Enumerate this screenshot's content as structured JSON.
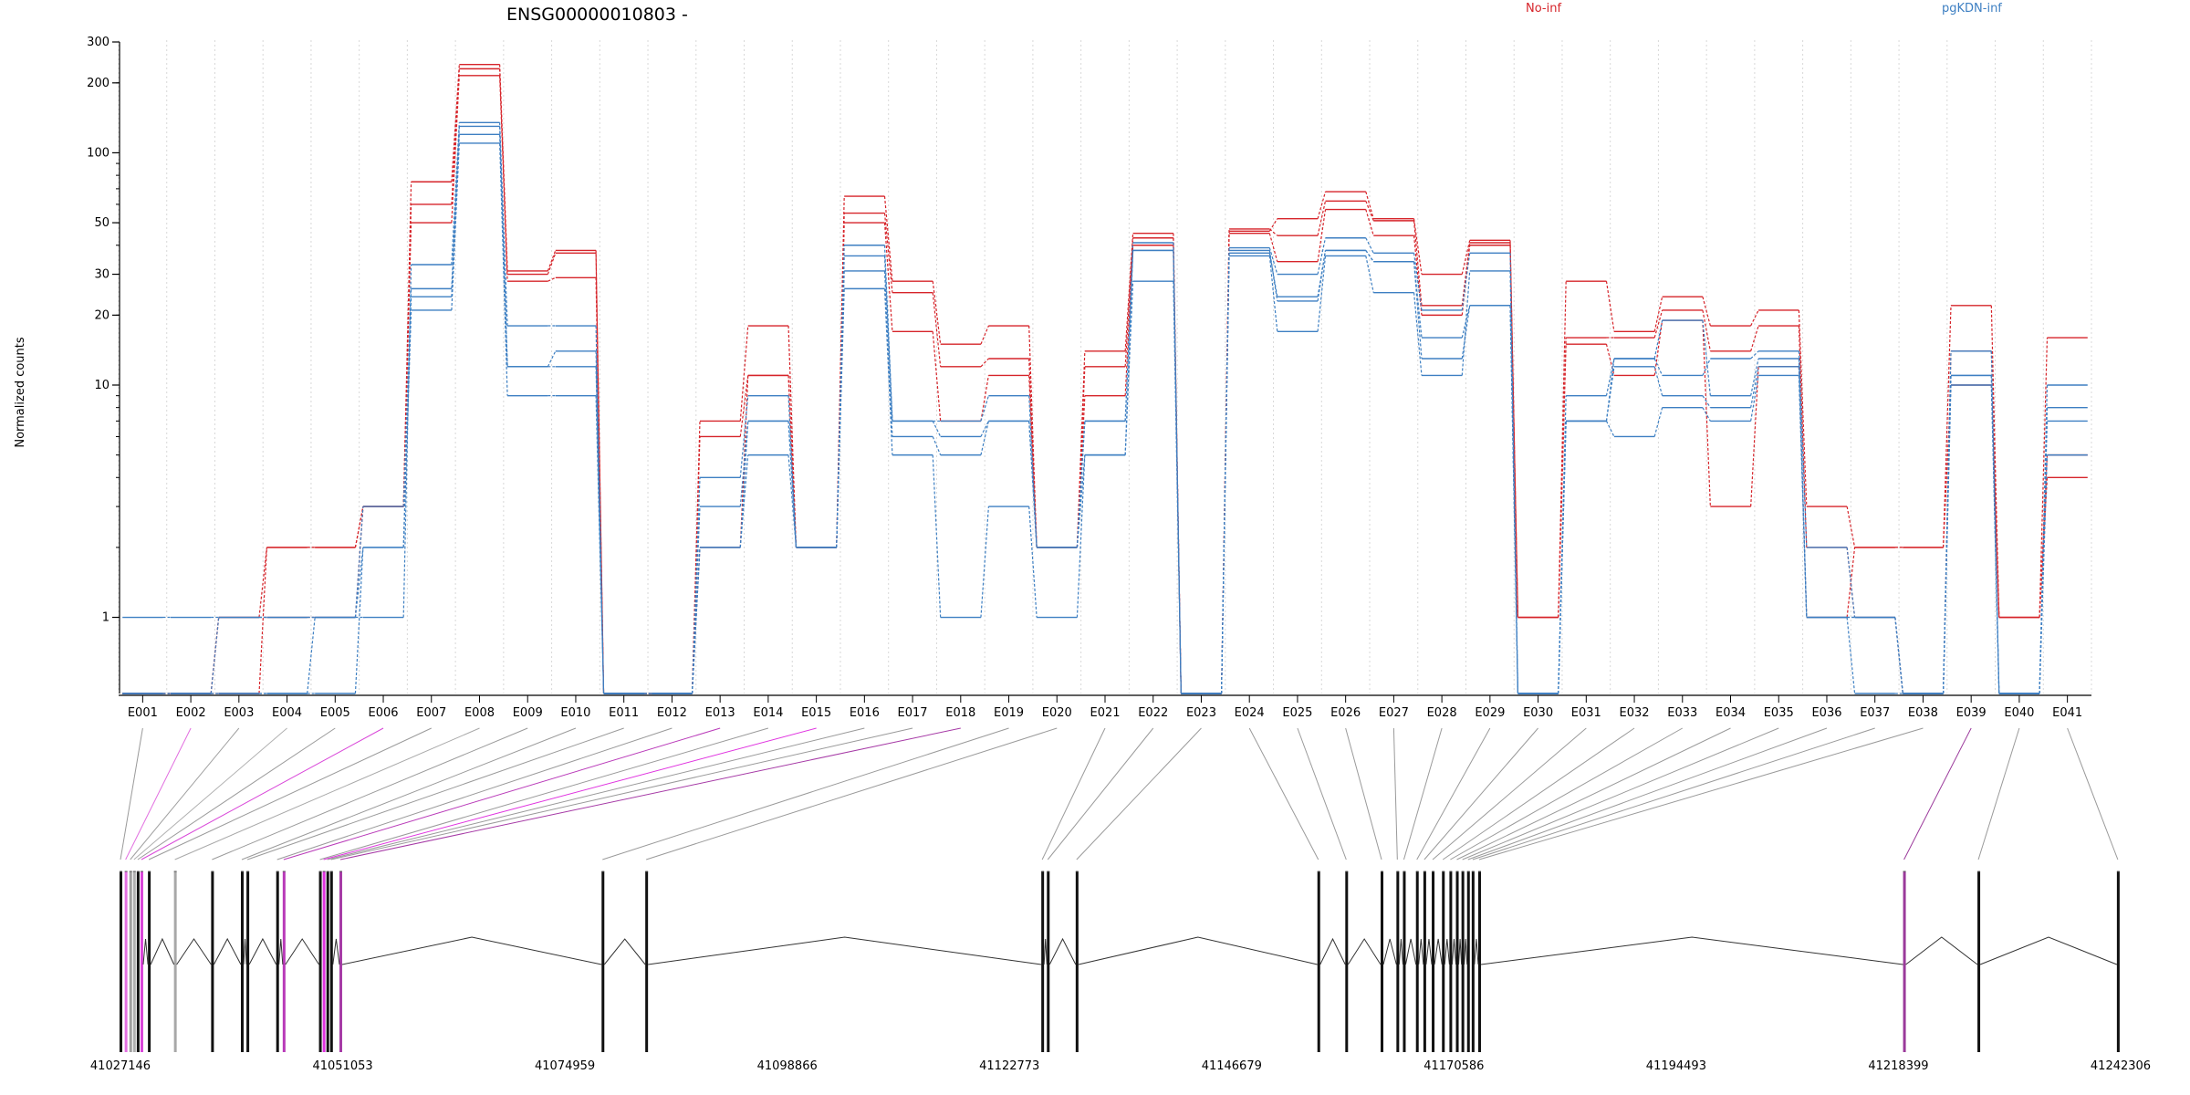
{
  "chart_data": {
    "type": "line",
    "title": "ENSG00000010803 -",
    "ylabel": "Normalized counts",
    "xlabel": "",
    "yscale": "log",
    "ylim": [
      0.5,
      300
    ],
    "y_ticks": [
      1,
      10,
      20,
      30,
      50,
      100,
      200,
      300
    ],
    "zero_floor_display": 0.47,
    "grid": "vertical dotted lines between exons",
    "legend": [
      {
        "label": "No-inf",
        "color": "#d6242a"
      },
      {
        "label": "pgKDN-inf",
        "color": "#3d7fc2"
      }
    ],
    "categories": [
      "E001",
      "E002",
      "E003",
      "E004",
      "E005",
      "E006",
      "E007",
      "E008",
      "E009",
      "E010",
      "E011",
      "E012",
      "E013",
      "E014",
      "E015",
      "E016",
      "E017",
      "E018",
      "E019",
      "E020",
      "E021",
      "E022",
      "E023",
      "E024",
      "E025",
      "E026",
      "E027",
      "E028",
      "E029",
      "E030",
      "E031",
      "E032",
      "E033",
      "E034",
      "E035",
      "E036",
      "E037",
      "E038",
      "E039",
      "E040",
      "E041"
    ],
    "series": [
      {
        "group": "No-inf",
        "color": "#d6242a",
        "values": [
          0,
          0,
          1,
          2,
          2,
          3,
          75,
          240,
          31,
          38,
          0,
          0,
          7,
          18,
          2,
          65,
          28,
          15,
          18,
          2,
          14,
          45,
          0,
          46,
          52,
          68,
          52,
          30,
          42,
          1,
          28,
          17,
          24,
          18,
          21,
          3,
          2,
          2,
          22,
          1,
          16
        ]
      },
      {
        "group": "No-inf",
        "color": "#d6242a",
        "values": [
          0,
          0,
          1,
          1,
          1,
          3,
          60,
          230,
          30,
          37,
          0,
          0,
          6,
          11,
          2,
          55,
          25,
          12,
          13,
          2,
          12,
          43,
          0,
          47,
          44,
          62,
          51,
          22,
          41,
          1,
          16,
          16,
          21,
          14,
          18,
          2,
          1,
          0,
          14,
          1,
          5
        ]
      },
      {
        "group": "No-inf",
        "color": "#d6242a",
        "values": [
          0,
          0,
          0,
          2,
          2,
          3,
          50,
          215,
          28,
          29,
          0,
          0,
          2,
          11,
          2,
          50,
          17,
          7,
          11,
          2,
          9,
          40,
          0,
          45,
          34,
          57,
          44,
          20,
          40,
          1,
          15,
          11,
          19,
          3,
          12,
          1,
          2,
          2,
          10,
          1,
          4
        ]
      },
      {
        "group": "pgKDN-inf",
        "color": "#3d7fc2",
        "values": [
          1,
          1,
          1,
          1,
          1,
          1,
          33,
          135,
          18,
          18,
          0,
          0,
          4,
          9,
          2,
          40,
          7,
          7,
          9,
          2,
          7,
          41,
          0,
          39,
          30,
          43,
          37,
          21,
          37,
          0,
          9,
          13,
          11,
          13,
          14,
          2,
          1,
          0,
          14,
          0,
          10
        ]
      },
      {
        "group": "pgKDN-inf",
        "color": "#3d7fc2",
        "values": [
          0,
          0,
          1,
          1,
          1,
          3,
          26,
          130,
          12,
          14,
          0,
          0,
          3,
          7,
          2,
          36,
          7,
          6,
          7,
          2,
          7,
          38,
          0,
          37,
          24,
          38,
          34,
          16,
          22,
          0,
          7,
          13,
          19,
          9,
          13,
          1,
          1,
          0,
          11,
          0,
          8
        ]
      },
      {
        "group": "pgKDN-inf",
        "color": "#3d7fc2",
        "values": [
          0,
          0,
          0,
          0,
          1,
          2,
          24,
          120,
          12,
          12,
          0,
          0,
          2,
          7,
          2,
          31,
          6,
          5,
          7,
          2,
          5,
          38,
          0,
          38,
          23,
          38,
          34,
          13,
          22,
          0,
          7,
          12,
          9,
          8,
          12,
          1,
          1,
          0,
          11,
          0,
          7
        ]
      },
      {
        "group": "pgKDN-inf",
        "color": "#3d7fc2",
        "values": [
          0,
          0,
          0,
          0,
          0,
          2,
          21,
          110,
          9,
          9,
          0,
          0,
          2,
          5,
          2,
          26,
          5,
          1,
          3,
          1,
          5,
          28,
          0,
          36,
          17,
          36,
          25,
          11,
          31,
          0,
          7,
          6,
          8,
          7,
          11,
          1,
          0,
          0,
          10,
          0,
          5
        ]
      }
    ],
    "exon_colors": [
      "#9e9e9e",
      "#e26fe0",
      "#a0a0a0",
      "#b0b0b0",
      "#9e9e9e",
      "#d946d9",
      "#9e9e9e",
      "#a8a8a8",
      "#9e9e9e",
      "#9e9e9e",
      "#9e9e9e",
      "#9e9e9e",
      "#b93ab9",
      "#9e9e9e",
      "#e033e0",
      "#9e9e9e",
      "#9e9e9e",
      "#a63aa6",
      "#9e9e9e",
      "#9e9e9e",
      "#9e9e9e",
      "#9e9e9e",
      "#9e9e9e",
      "#9e9e9e",
      "#9e9e9e",
      "#9e9e9e",
      "#9e9e9e",
      "#9e9e9e",
      "#9e9e9e",
      "#9e9e9e",
      "#9e9e9e",
      "#9e9e9e",
      "#9e9e9e",
      "#9e9e9e",
      "#9e9e9e",
      "#9e9e9e",
      "#9e9e9e",
      "#9e9e9e",
      "#9b3a9b",
      "#9e9e9e",
      "#9e9e9e"
    ],
    "genomic_axis_labels": [
      "41027146",
      "41051053",
      "41074959",
      "41098866",
      "41122773",
      "41146679",
      "41170586",
      "41194493",
      "41218399",
      "41242306"
    ],
    "genomic_range": [
      41027146,
      41242306
    ],
    "exon_starts": [
      41027146,
      41027700,
      41028200,
      41028600,
      41029000,
      41029400,
      41030200,
      41033000,
      41037000,
      41040200,
      41040800,
      41044000,
      41044700,
      41048600,
      41049000,
      41049400,
      41049800,
      41050800,
      41079000,
      41083700,
      41126300,
      41126900,
      41130000,
      41156000,
      41159000,
      41162800,
      41164500,
      41165200,
      41166600,
      41167400,
      41168300,
      41169400,
      41170200,
      41170900,
      41171500,
      41172100,
      41172600,
      41173300,
      41219000,
      41227000,
      41242000
    ]
  }
}
